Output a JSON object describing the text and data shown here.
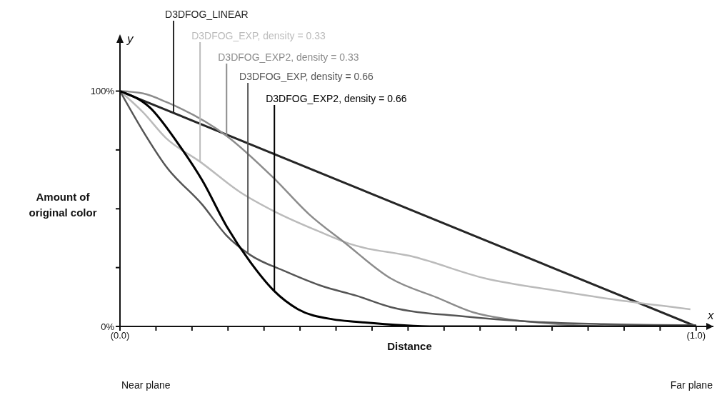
{
  "chart_data": {
    "type": "line",
    "xlabel": "Distance",
    "ylabel": "Amount of original color",
    "xlim": [
      0,
      1.03
    ],
    "ylim": [
      0,
      112
    ],
    "xticks": [
      {
        "value": 0,
        "label": "(0.0)"
      },
      {
        "value": 0.0625,
        "label": null
      },
      {
        "value": 0.125,
        "label": null
      },
      {
        "value": 0.1875,
        "label": null
      },
      {
        "value": 0.25,
        "label": null
      },
      {
        "value": 0.3125,
        "label": null
      },
      {
        "value": 0.375,
        "label": null
      },
      {
        "value": 0.4375,
        "label": null
      },
      {
        "value": 0.5,
        "label": null
      },
      {
        "value": 0.5625,
        "label": null
      },
      {
        "value": 0.625,
        "label": null
      },
      {
        "value": 0.6875,
        "label": null
      },
      {
        "value": 0.75,
        "label": null
      },
      {
        "value": 0.8125,
        "label": null
      },
      {
        "value": 0.875,
        "label": null
      },
      {
        "value": 0.9375,
        "label": null
      },
      {
        "value": 1,
        "label": "(1.0)"
      }
    ],
    "yticks": [
      {
        "value": 0,
        "label": "0%"
      },
      {
        "value": 25,
        "label": null
      },
      {
        "value": 50,
        "label": null
      },
      {
        "value": 75,
        "label": null
      },
      {
        "value": 100,
        "label": "100%"
      }
    ],
    "grid": false,
    "marker": "none",
    "line_style": "solid",
    "series": [
      {
        "name": "D3DFOG_LINEAR",
        "color": "#262626",
        "x": [
          0,
          1
        ],
        "values": [
          100,
          0
        ]
      },
      {
        "name": "D3DFOG_EXP, density = 0.33",
        "color": "#bbbbbb",
        "x": [
          0,
          0.04,
          0.08,
          0.139,
          0.209,
          0.267,
          0.349,
          0.4,
          0.511,
          0.634,
          0.758,
          0.882,
          0.99
        ],
        "values": [
          100,
          91,
          80,
          70,
          57,
          49,
          40,
          35,
          29.5,
          20.4,
          15.2,
          10.6,
          7.3
        ]
      },
      {
        "name": "D3DFOG_EXP2, density = 0.33",
        "color": "#8c8c8c",
        "x": [
          0,
          0.04,
          0.08,
          0.185,
          0.267,
          0.328,
          0.39,
          0.47,
          0.551,
          0.613,
          0.675,
          0.76,
          0.85,
          1
        ],
        "values": [
          100,
          99,
          95.4,
          81,
          63,
          47.7,
          35.6,
          20.4,
          12.2,
          6,
          3,
          1,
          0,
          0
        ]
      },
      {
        "name": "D3DFOG_EXP, density = 0.66",
        "color": "#555555",
        "x": [
          0,
          0.04,
          0.08,
          0.143,
          0.185,
          0.226,
          0.287,
          0.349,
          0.411,
          0.47,
          0.594,
          0.717,
          0.84,
          1
        ],
        "values": [
          100,
          83,
          68,
          51.7,
          38.6,
          30.4,
          23.4,
          17.3,
          13,
          8.2,
          4.3,
          2,
          1,
          0.5
        ]
      },
      {
        "name": "D3DFOG_EXP2, density = 0.66",
        "color": "#000000",
        "x": [
          0,
          0.052,
          0.1,
          0.143,
          0.185,
          0.226,
          0.267,
          0.309,
          0.37,
          0.41,
          0.55,
          1
        ],
        "values": [
          100,
          93,
          78,
          62,
          42.6,
          27.4,
          15.2,
          7.3,
          3,
          2,
          0,
          0
        ]
      }
    ],
    "annotations": [
      "x",
      "y",
      "Near plane",
      "Far plane"
    ]
  }
}
